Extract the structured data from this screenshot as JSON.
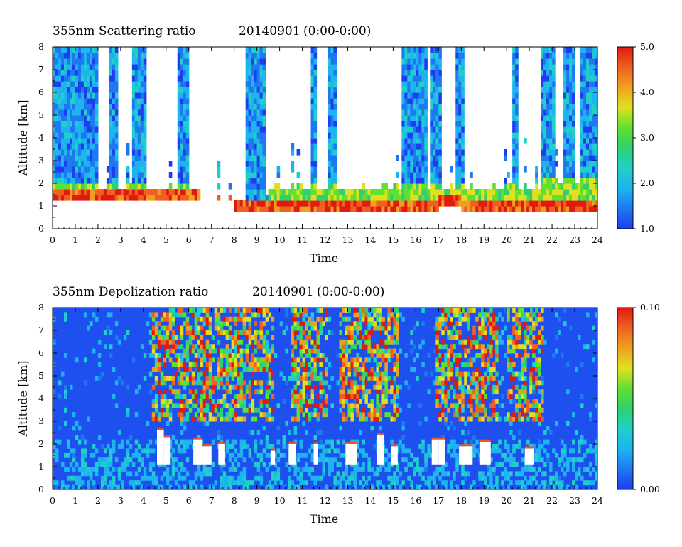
{
  "chart_data": [
    {
      "type": "heatmap",
      "title": "355nm Scattering ratio",
      "date": "20140901",
      "period": "(0:00-0:00)",
      "xlabel": "Time",
      "ylabel": "Altitude [km]",
      "xlim": [
        0,
        24
      ],
      "ylim": [
        0,
        8
      ],
      "x_ticks": [
        "0",
        "1",
        "2",
        "3",
        "4",
        "5",
        "6",
        "7",
        "8",
        "9",
        "10",
        "11",
        "12",
        "13",
        "14",
        "15",
        "16",
        "17",
        "18",
        "19",
        "20",
        "21",
        "22",
        "23",
        "24"
      ],
      "y_ticks": [
        "0",
        "1",
        "2",
        "3",
        "4",
        "5",
        "6",
        "7",
        "8"
      ],
      "colorbar": {
        "min": 1.0,
        "max": 5.0,
        "labels": [
          "1.0",
          "2.0",
          "3.0",
          "4.0",
          "5.0"
        ]
      },
      "cloud_base_km": [
        1.3,
        1.3,
        1.35,
        1.35,
        1.3,
        1.3,
        1.3,
        1.4,
        1.0,
        0.9,
        0.8,
        0.9,
        1.0,
        1.0,
        1.0,
        1.0,
        1.0,
        1.1,
        1.0,
        1.0,
        1.0,
        0.9,
        0.9,
        0.8
      ]
    },
    {
      "type": "heatmap",
      "title": "355nm Depolization ratio",
      "date": "20140901",
      "period": "(0:00-0:00)",
      "xlabel": "Time",
      "ylabel": "Altitude [km]",
      "xlim": [
        0,
        24
      ],
      "ylim": [
        0,
        8
      ],
      "x_ticks": [
        "0",
        "1",
        "2",
        "3",
        "4",
        "5",
        "6",
        "7",
        "8",
        "9",
        "10",
        "11",
        "12",
        "13",
        "14",
        "15",
        "16",
        "17",
        "18",
        "19",
        "20",
        "21",
        "22",
        "23",
        "24"
      ],
      "y_ticks": [
        "0",
        "1",
        "2",
        "3",
        "4",
        "5",
        "6",
        "7",
        "8"
      ],
      "colorbar": {
        "min": 0.0,
        "max": 0.1,
        "labels": [
          "0.00",
          "0.10"
        ]
      }
    }
  ],
  "colors": {
    "scale": [
      "#1e3cf0",
      "#1e78f0",
      "#1eb4f0",
      "#20d0c8",
      "#30d070",
      "#60e030",
      "#e0e020",
      "#f0a020",
      "#f06020",
      "#e01a10"
    ]
  }
}
